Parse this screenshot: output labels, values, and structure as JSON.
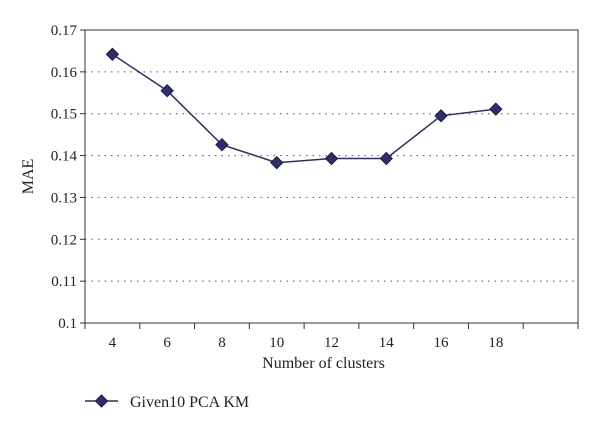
{
  "chart_data": {
    "type": "line",
    "xlabel": "Number of clusters",
    "ylabel": "MAE",
    "categories": [
      "4",
      "6",
      "8",
      "10",
      "12",
      "14",
      "16",
      "18",
      ""
    ],
    "y_ticks": [
      "0.1",
      "0.11",
      "0.12",
      "0.13",
      "0.14",
      "0.15",
      "0.16",
      "0.17"
    ],
    "ylim": [
      0.1,
      0.17
    ],
    "grid": "horizontal dotted",
    "legend_position": "bottom-left",
    "series": [
      {
        "name": "Given10 PCA KM",
        "color": "#2e2e6e",
        "marker": "diamond",
        "x": [
          "4",
          "6",
          "8",
          "10",
          "12",
          "14",
          "16",
          "18"
        ],
        "values": [
          0.1642,
          0.1555,
          0.1426,
          0.1383,
          0.1393,
          0.1393,
          0.1495,
          0.1511
        ]
      }
    ]
  }
}
